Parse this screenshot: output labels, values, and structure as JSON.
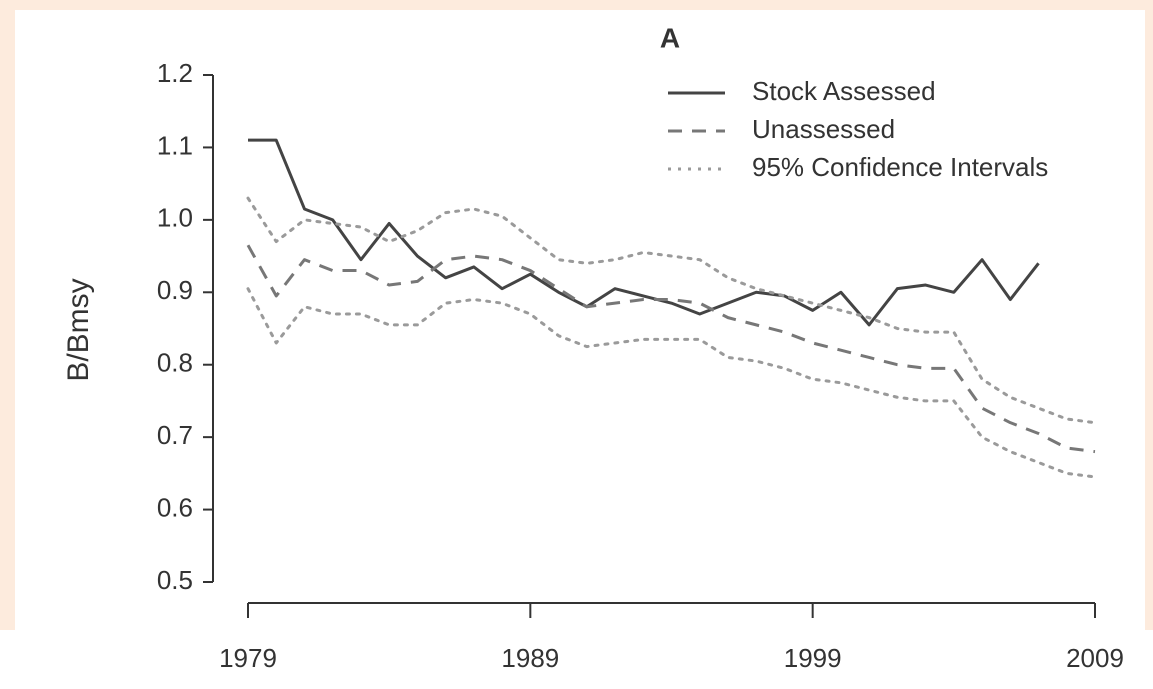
{
  "chart_data": {
    "type": "line",
    "title": "A",
    "ylabel": "B/Bmsy",
    "x": [
      1979,
      1980,
      1981,
      1982,
      1983,
      1984,
      1985,
      1986,
      1987,
      1988,
      1989,
      1990,
      1991,
      1992,
      1993,
      1994,
      1995,
      1996,
      1997,
      1998,
      1999,
      2000,
      2001,
      2002,
      2003,
      2004,
      2005,
      2006,
      2007,
      2008,
      2009
    ],
    "xlim": [
      1979,
      2009
    ],
    "xticks": [
      1979,
      1989,
      1999,
      2009
    ],
    "ylim": [
      0.5,
      1.2
    ],
    "yticks": [
      0.5,
      0.6,
      0.7,
      0.8,
      0.9,
      {
        "value": 1,
        "label": "1.0"
      },
      1.1,
      1.2
    ],
    "legend": "top-right",
    "series": [
      {
        "name": "Stock Assessed",
        "color": "#444444",
        "style": "solid",
        "values": [
          1.11,
          1.11,
          1.015,
          1.0,
          0.945,
          0.995,
          0.95,
          0.92,
          0.935,
          0.905,
          0.925,
          0.9,
          0.88,
          0.905,
          0.895,
          0.885,
          0.87,
          0.885,
          0.9,
          0.895,
          0.875,
          0.9,
          0.855,
          0.905,
          0.91,
          0.9,
          0.945,
          0.89,
          0.94,
          null,
          null
        ]
      },
      {
        "name": "Unassessed",
        "color": "#777777",
        "style": "dashed",
        "values": [
          0.965,
          0.895,
          0.945,
          0.93,
          0.93,
          0.91,
          0.915,
          0.945,
          0.95,
          0.945,
          0.93,
          0.905,
          0.88,
          0.885,
          0.89,
          0.89,
          0.885,
          0.865,
          0.855,
          0.845,
          0.83,
          0.82,
          0.81,
          0.8,
          0.795,
          0.795,
          0.74,
          0.72,
          0.705,
          0.685,
          0.68
        ]
      },
      {
        "name": "95% Confidence Intervals",
        "color": "#9a9a9a",
        "style": "dotted",
        "upper": [
          1.03,
          0.97,
          1.0,
          0.995,
          0.99,
          0.97,
          0.985,
          1.01,
          1.015,
          1.005,
          0.975,
          0.945,
          0.94,
          0.945,
          0.955,
          0.95,
          0.945,
          0.92,
          0.905,
          0.895,
          0.885,
          0.875,
          0.865,
          0.85,
          0.845,
          0.845,
          0.78,
          0.755,
          0.74,
          0.725,
          0.72
        ],
        "lower": [
          0.905,
          0.83,
          0.88,
          0.87,
          0.87,
          0.855,
          0.855,
          0.885,
          0.89,
          0.885,
          0.87,
          0.84,
          0.825,
          0.83,
          0.835,
          0.835,
          0.835,
          0.81,
          0.805,
          0.795,
          0.78,
          0.775,
          0.765,
          0.755,
          0.75,
          0.75,
          0.7,
          0.68,
          0.665,
          0.65,
          0.645
        ]
      }
    ]
  }
}
